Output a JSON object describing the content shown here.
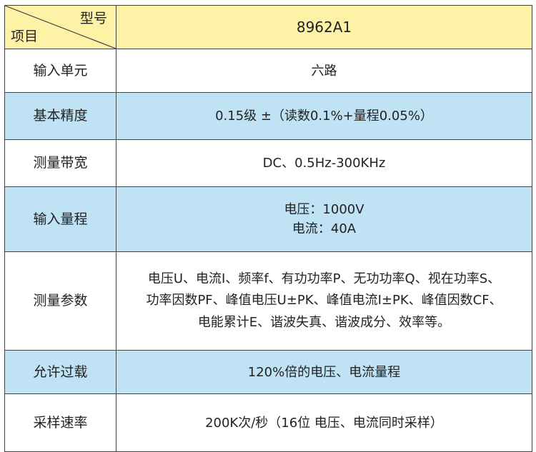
{
  "header": {
    "corner_top": "型号",
    "corner_bottom": "项目",
    "model": "8962A1"
  },
  "rows": [
    {
      "label": "输入单元",
      "value": [
        "六路"
      ],
      "bg": "white"
    },
    {
      "label": "基本精度",
      "value": [
        "0.15级 ±（读数0.1%+量程0.05%）"
      ],
      "bg": "blue"
    },
    {
      "label": "测量带宽",
      "value": [
        "DC、0.5Hz-300KHz"
      ],
      "bg": "white"
    },
    {
      "label": "输入量程",
      "value": [
        "电压：1000V",
        "电流：40A"
      ],
      "bg": "blue"
    },
    {
      "label": "测量参数",
      "value": [
        "电压U、电流I、频率f、有功功率P、无功功率Q、视在功率S、",
        "功率因数PF、峰值电压U±PK、峰值电流I±PK、峰值因数CF、",
        "电能累计E、谐波失真、谐波成分、效率等。"
      ],
      "bg": "white"
    },
    {
      "label": "允许过载",
      "value": [
        "120%倍的电压、电流量程"
      ],
      "bg": "blue"
    },
    {
      "label": "采样速率",
      "value": [
        "200K次/秒（16位 电压、电流同时采样）"
      ],
      "bg": "white"
    }
  ],
  "colors": {
    "header": "#fdf2a6",
    "blue": "#bfe2f5",
    "border": "#444444"
  }
}
